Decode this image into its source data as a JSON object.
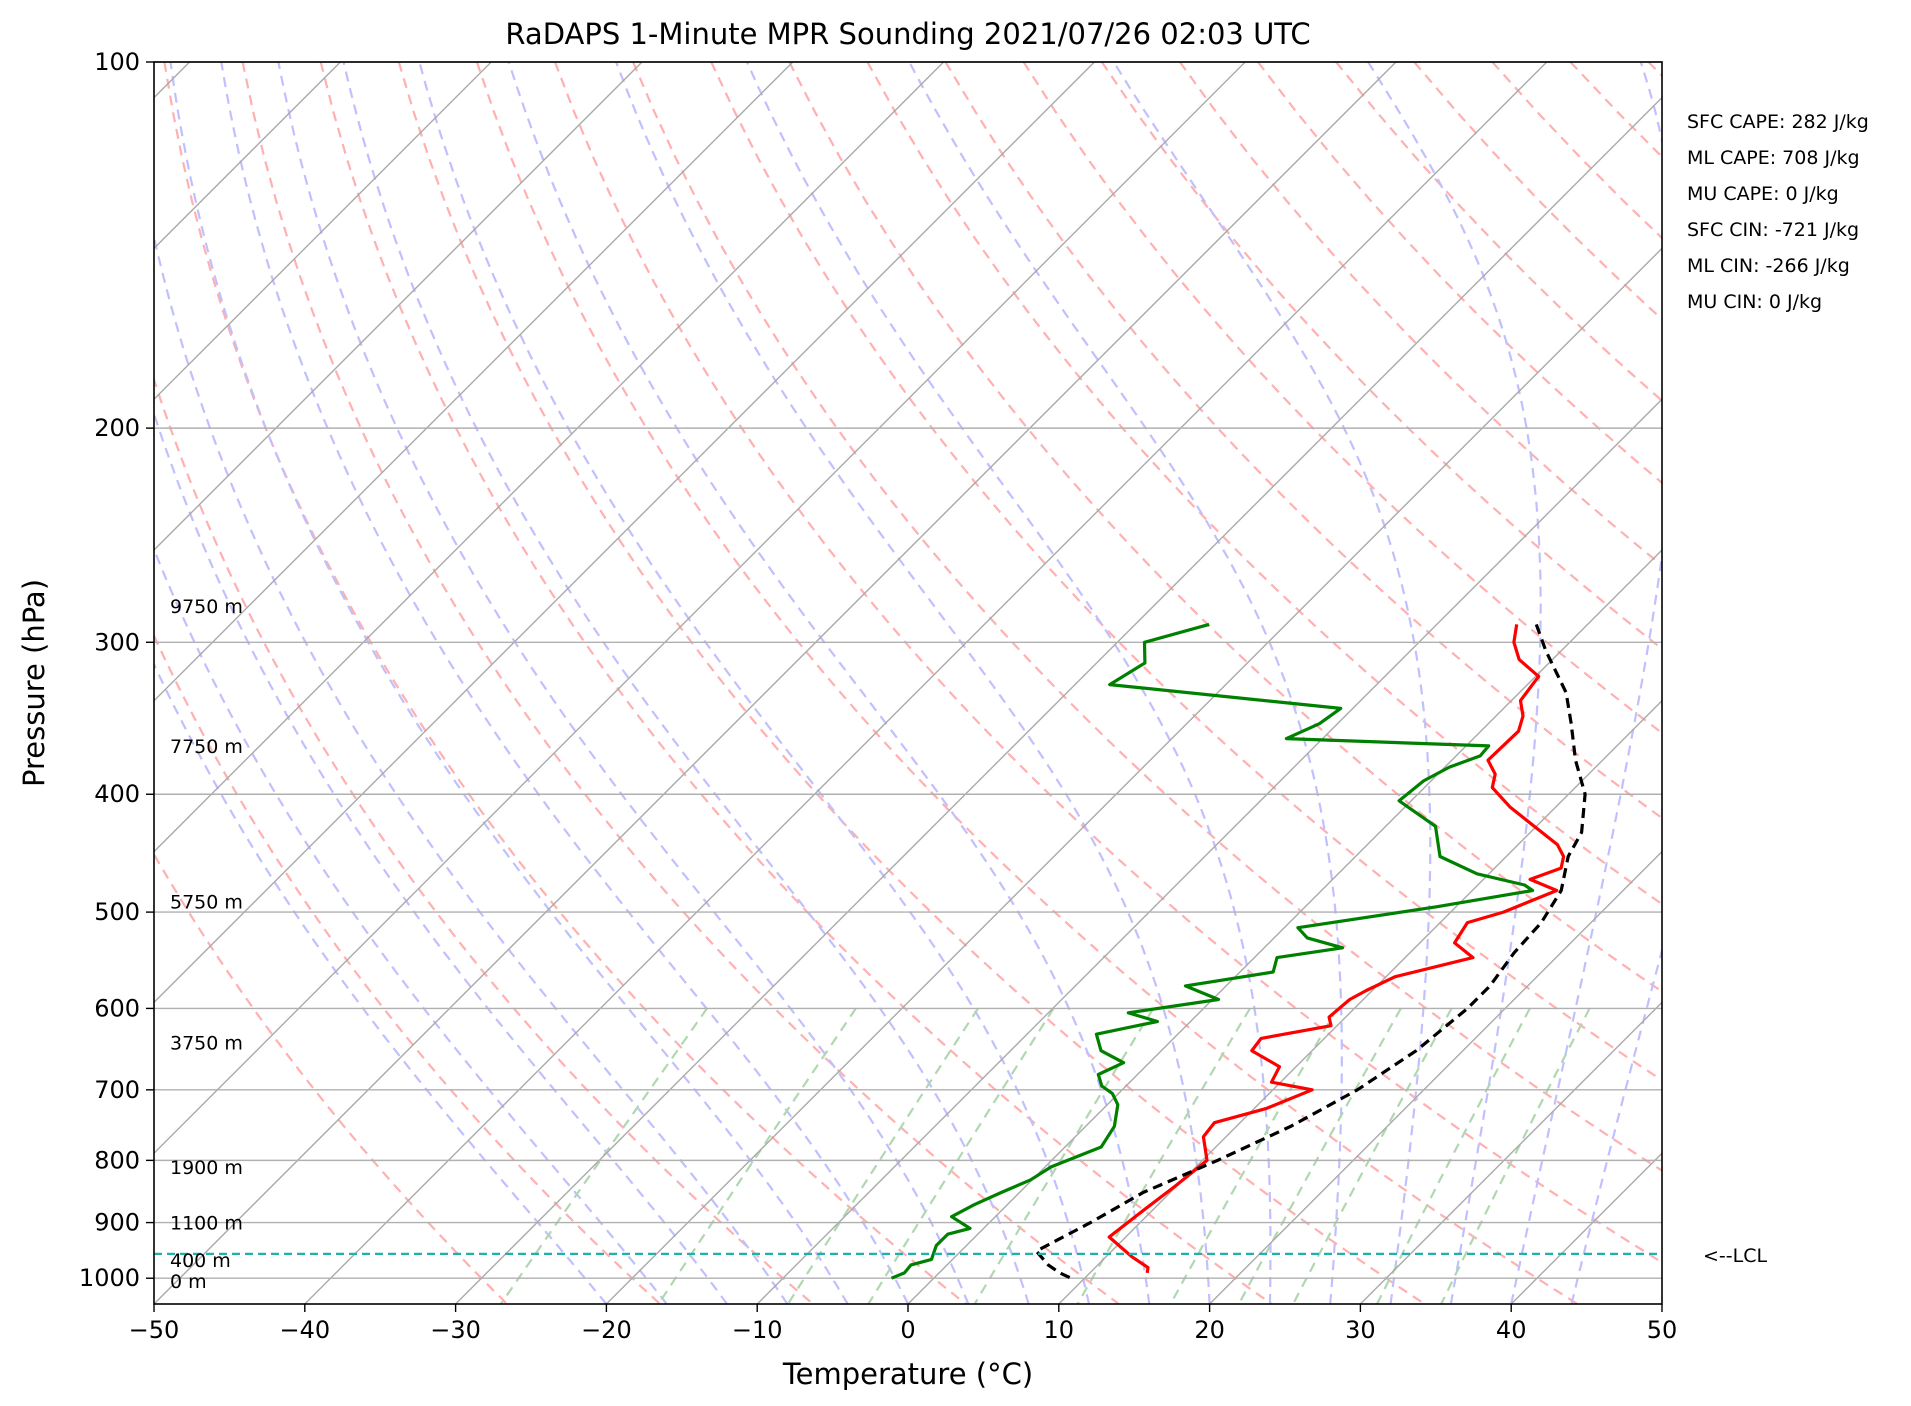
{
  "chart_data": {
    "type": "line",
    "title": "RaDAPS 1-Minute MPR Sounding 2021/07/26 02:03 UTC",
    "xlabel": "Temperature (°C)",
    "ylabel": "Pressure (hPa)",
    "xlim": [
      -50,
      50
    ],
    "ylim": [
      1050,
      100
    ],
    "y_scale": "log",
    "x_ticks": [
      -50,
      -40,
      -30,
      -20,
      -10,
      0,
      10,
      20,
      30,
      40,
      50
    ],
    "x_tick_labels": [
      "−50",
      "−40",
      "−30",
      "−20",
      "−10",
      "0",
      "10",
      "20",
      "30",
      "40",
      "50"
    ],
    "y_ticks": [
      100,
      200,
      300,
      400,
      500,
      600,
      700,
      800,
      900,
      1000
    ],
    "y_tick_labels": [
      "100",
      "200",
      "300",
      "400",
      "500",
      "600",
      "700",
      "800",
      "900",
      "1000"
    ],
    "grid": true,
    "skew": 1.0,
    "series": [
      {
        "color": "#ff0000",
        "points": [
          [
            -4.7,
            290
          ],
          [
            -3.7,
            300
          ],
          [
            -2.2,
            310
          ],
          [
            0.2,
            320
          ],
          [
            0.6,
            335
          ],
          [
            1.8,
            345
          ],
          [
            2.5,
            355
          ],
          [
            2.4,
            375
          ],
          [
            3.8,
            385
          ],
          [
            4.5,
            395
          ],
          [
            7.0,
            410
          ],
          [
            12.6,
            440
          ],
          [
            13.8,
            450
          ],
          [
            14.4,
            460
          ],
          [
            13.1,
            470
          ],
          [
            15.6,
            480
          ],
          [
            13.5,
            500
          ],
          [
            11.8,
            510
          ],
          [
            12.3,
            530
          ],
          [
            14.5,
            545
          ],
          [
            10.6,
            565
          ],
          [
            9.6,
            580
          ],
          [
            9.1,
            590
          ],
          [
            8.9,
            610
          ],
          [
            9.6,
            620
          ],
          [
            5.8,
            635
          ],
          [
            6.0,
            650
          ],
          [
            8.9,
            670
          ],
          [
            9.4,
            690
          ],
          [
            12.6,
            700
          ],
          [
            10.8,
            725
          ],
          [
            8.3,
            745
          ],
          [
            8.5,
            765
          ],
          [
            10.3,
            800
          ],
          [
            9.9,
            840
          ],
          [
            9.4,
            880
          ],
          [
            8.9,
            925
          ],
          [
            11.7,
            960
          ],
          [
            13.5,
            980
          ],
          [
            13.8,
            990
          ]
        ]
      },
      {
        "color": "#008000",
        "points": [
          [
            -25.1,
            290
          ],
          [
            -28.2,
            300
          ],
          [
            -26.8,
            312
          ],
          [
            -27.7,
            325
          ],
          [
            -10.8,
            340
          ],
          [
            -11.2,
            350
          ],
          [
            -12.4,
            360
          ],
          [
            1.5,
            365
          ],
          [
            1.6,
            372
          ],
          [
            0.3,
            380
          ],
          [
            -0.5,
            390
          ],
          [
            -0.8,
            405
          ],
          [
            3.3,
            425
          ],
          [
            5.6,
            450
          ],
          [
            9.2,
            465
          ],
          [
            13.1,
            475
          ],
          [
            14.0,
            480
          ],
          [
            8.7,
            495
          ],
          [
            0.9,
            515
          ],
          [
            2.2,
            525
          ],
          [
            5.2,
            535
          ],
          [
            1.5,
            545
          ],
          [
            2.2,
            560
          ],
          [
            -2.7,
            575
          ],
          [
            0.4,
            590
          ],
          [
            -4.7,
            605
          ],
          [
            -2.2,
            615
          ],
          [
            -5.4,
            630
          ],
          [
            -4.0,
            650
          ],
          [
            -1.7,
            665
          ],
          [
            -2.6,
            680
          ],
          [
            -1.6,
            695
          ],
          [
            -0.4,
            705
          ],
          [
            0.7,
            720
          ],
          [
            1.9,
            750
          ],
          [
            2.4,
            780
          ],
          [
            0.4,
            810
          ],
          [
            -0.1,
            830
          ],
          [
            -1.2,
            850
          ],
          [
            -2.2,
            870
          ],
          [
            -2.9,
            890
          ],
          [
            -0.9,
            910
          ],
          [
            -2.0,
            920
          ],
          [
            -2.0,
            940
          ],
          [
            -1.4,
            965
          ],
          [
            -2.4,
            975
          ],
          [
            -2.3,
            990
          ],
          [
            -2.8,
            1000
          ]
        ]
      },
      {
        "color": "#000000",
        "dashed": true,
        "points": [
          [
            -3.4,
            290
          ],
          [
            -1.0,
            305
          ],
          [
            3.1,
            330
          ],
          [
            5.5,
            350
          ],
          [
            8.2,
            375
          ],
          [
            11.1,
            400
          ],
          [
            13.4,
            430
          ],
          [
            14.1,
            450
          ],
          [
            15.9,
            480
          ],
          [
            16.7,
            510
          ],
          [
            16.9,
            540
          ],
          [
            17.5,
            575
          ],
          [
            17.5,
            600
          ],
          [
            16.9,
            650
          ],
          [
            15.6,
            700
          ],
          [
            13.6,
            750
          ],
          [
            11.0,
            800
          ],
          [
            8.2,
            850
          ],
          [
            6.7,
            900
          ],
          [
            5.0,
            950
          ],
          [
            6.7,
            975
          ],
          [
            8.0,
            990
          ],
          [
            9.1,
            1000
          ]
        ]
      }
    ],
    "height_labels": [
      {
        "text": "9750 m",
        "p": 280
      },
      {
        "text": "7750 m",
        "p": 365
      },
      {
        "text": "5750 m",
        "p": 490
      },
      {
        "text": "3750 m",
        "p": 640
      },
      {
        "text": "1900 m",
        "p": 810
      },
      {
        "text": "1100 m",
        "p": 900
      },
      {
        "text": "400 m",
        "p": 966
      },
      {
        "text": "0 m",
        "p": 1005
      }
    ],
    "lcl": {
      "p": 955,
      "label": "<--LCL"
    },
    "annotations": [
      "SFC CAPE: 282 J/kg",
      "ML CAPE: 708 J/kg",
      "MU CAPE: 0 J/kg",
      "SFC CIN: -721 J/kg",
      "ML CIN: -266 J/kg",
      "MU CIN: 0 J/kg"
    ],
    "background_lines": {
      "isotherms": {
        "color": "#aaaaaa",
        "from": -160,
        "to": 50,
        "step": 10
      },
      "dry_adiabats": {
        "color": "#ffb0b0",
        "dashed": true
      },
      "moist_adiabats": {
        "color": "#c0c0ff",
        "dashed": true
      },
      "mixing_ratio": {
        "color": "#b0d8b0",
        "dashed": true
      }
    }
  }
}
